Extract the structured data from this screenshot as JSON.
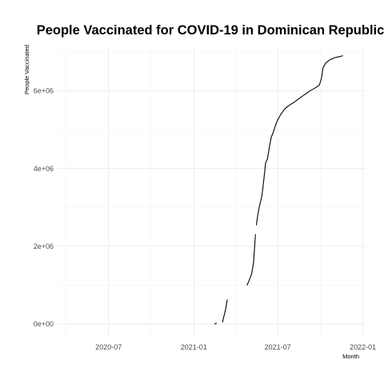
{
  "chart_data": {
    "type": "line",
    "title": "People Vaccinated for COVID-19 in Dominican Republic",
    "xlabel": "Month",
    "ylabel": "People Vaccinated",
    "x_ticks": [
      "2020-07",
      "2021-01",
      "2021-07",
      "2022-01"
    ],
    "y_ticks": [
      "0e+00",
      "2e+06",
      "4e+06",
      "6e+06"
    ],
    "x_range": [
      "2020-03-13",
      "2022-01-05"
    ],
    "ylim": [
      -350000,
      7100000
    ],
    "grid": true,
    "series": [
      {
        "segments": [
          [
            [
              "2021-02-15",
              0
            ],
            [
              "2021-02-19",
              20000
            ]
          ],
          [
            [
              "2021-03-04",
              50000
            ],
            [
              "2021-03-11",
              400000
            ],
            [
              "2021-03-14",
              620000
            ]
          ],
          [
            [
              "2021-04-26",
              1000000
            ],
            [
              "2021-05-03",
              1200000
            ],
            [
              "2021-05-06",
              1300000
            ],
            [
              "2021-05-10",
              1600000
            ],
            [
              "2021-05-14",
              2300000
            ]
          ],
          [
            [
              "2021-05-16",
              2550000
            ],
            [
              "2021-05-19",
              2800000
            ],
            [
              "2021-05-22",
              3000000
            ],
            [
              "2021-05-25",
              3150000
            ],
            [
              "2021-05-28",
              3300000
            ],
            [
              "2021-06-01",
              3700000
            ],
            [
              "2021-06-05",
              4150000
            ],
            [
              "2021-06-09",
              4250000
            ],
            [
              "2021-06-13",
              4550000
            ],
            [
              "2021-06-17",
              4800000
            ],
            [
              "2021-06-22",
              4950000
            ],
            [
              "2021-06-26",
              5100000
            ],
            [
              "2021-07-01",
              5250000
            ],
            [
              "2021-07-08",
              5400000
            ],
            [
              "2021-07-16",
              5530000
            ],
            [
              "2021-07-25",
              5620000
            ],
            [
              "2021-08-05",
              5700000
            ],
            [
              "2021-08-16",
              5800000
            ],
            [
              "2021-08-28",
              5900000
            ],
            [
              "2021-09-09",
              6000000
            ],
            [
              "2021-09-21",
              6080000
            ],
            [
              "2021-09-29",
              6150000
            ],
            [
              "2021-10-03",
              6300000
            ],
            [
              "2021-10-07",
              6600000
            ],
            [
              "2021-10-13",
              6720000
            ],
            [
              "2021-10-22",
              6800000
            ],
            [
              "2021-11-01",
              6850000
            ],
            [
              "2021-11-12",
              6880000
            ],
            [
              "2021-11-18",
              6900000
            ]
          ]
        ]
      }
    ]
  }
}
